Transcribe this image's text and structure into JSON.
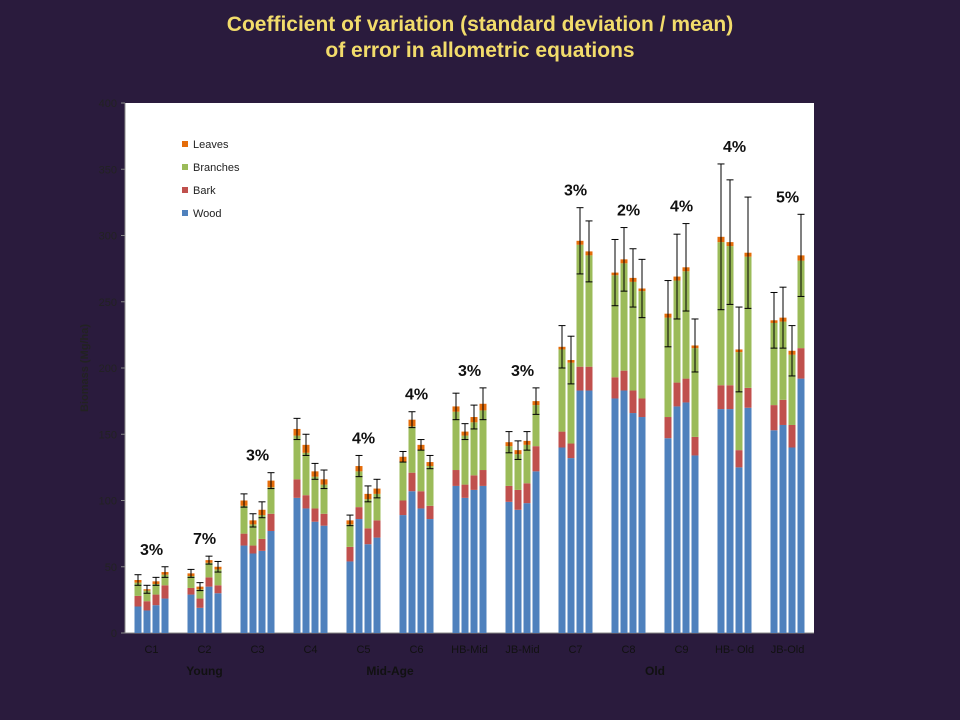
{
  "slide": {
    "title_line1": "Coefficient of variation (standard deviation / mean)",
    "title_line2": "of error in allometric equations"
  },
  "colors": {
    "background": "#2a1b3d",
    "title": "#f2dc6b",
    "plot_bg": "#ffffff",
    "wood": "#4f81bd",
    "bark": "#c0504d",
    "branches": "#9bbb59",
    "leaves": "#e46c0a"
  },
  "chart_data": {
    "type": "bar",
    "stacked": true,
    "title": "",
    "xlabel": "",
    "ylabel": "Biomass (Mg/ha)",
    "ylim": [
      0,
      400
    ],
    "yticks": [
      0,
      50,
      100,
      150,
      200,
      250,
      300,
      350,
      400
    ],
    "grid": false,
    "legend_position": "top-left",
    "series_order": [
      "Wood",
      "Bark",
      "Branches",
      "Leaves"
    ],
    "legend": [
      "Leaves",
      "Branches",
      "Bark",
      "Wood"
    ],
    "error_bars": true,
    "groups": [
      {
        "label": "C1",
        "cv": "3%",
        "bars": [
          {
            "wood": 20,
            "bark": 8,
            "branches": 10,
            "leaves": 2,
            "err": 4
          },
          {
            "wood": 17,
            "bark": 7,
            "branches": 8,
            "leaves": 1,
            "err": 3
          },
          {
            "wood": 21,
            "bark": 8,
            "branches": 8,
            "leaves": 2,
            "err": 3
          },
          {
            "wood": 26,
            "bark": 10,
            "branches": 8,
            "leaves": 2,
            "err": 4
          }
        ]
      },
      {
        "label": "C2",
        "cv": "7%",
        "bars": [
          {
            "wood": 29,
            "bark": 5,
            "branches": 9,
            "leaves": 2,
            "err": 3
          },
          {
            "wood": 19,
            "bark": 7,
            "branches": 7,
            "leaves": 2,
            "err": 3
          },
          {
            "wood": 35,
            "bark": 7,
            "branches": 11,
            "leaves": 2,
            "err": 3
          },
          {
            "wood": 30,
            "bark": 6,
            "branches": 12,
            "leaves": 2,
            "err": 4
          }
        ]
      },
      {
        "label": "C3",
        "cv": "3%",
        "bars": [
          {
            "wood": 66,
            "bark": 9,
            "branches": 21,
            "leaves": 4,
            "err": 5
          },
          {
            "wood": 60,
            "bark": 6,
            "branches": 16,
            "leaves": 3,
            "err": 5
          },
          {
            "wood": 62,
            "bark": 9,
            "branches": 18,
            "leaves": 4,
            "err": 6
          },
          {
            "wood": 77,
            "bark": 13,
            "branches": 20,
            "leaves": 5,
            "err": 6
          }
        ]
      },
      {
        "label": "C4",
        "cv": "",
        "bars": [
          {
            "wood": 102,
            "bark": 14,
            "branches": 33,
            "leaves": 5,
            "err": 8
          },
          {
            "wood": 94,
            "bark": 10,
            "branches": 32,
            "leaves": 6,
            "err": 8
          },
          {
            "wood": 84,
            "bark": 10,
            "branches": 24,
            "leaves": 4,
            "err": 6
          },
          {
            "wood": 81,
            "bark": 9,
            "branches": 22,
            "leaves": 4,
            "err": 7
          }
        ]
      },
      {
        "label": "C5",
        "cv": "4%",
        "bars": [
          {
            "wood": 54,
            "bark": 11,
            "branches": 17,
            "leaves": 3,
            "err": 4
          },
          {
            "wood": 86,
            "bark": 9,
            "branches": 27,
            "leaves": 4,
            "err": 8
          },
          {
            "wood": 67,
            "bark": 12,
            "branches": 22,
            "leaves": 4,
            "err": 6
          },
          {
            "wood": 72,
            "bark": 13,
            "branches": 20,
            "leaves": 4,
            "err": 7
          }
        ]
      },
      {
        "label": "C6",
        "cv": "4%",
        "bars": [
          {
            "wood": 89,
            "bark": 11,
            "branches": 29,
            "leaves": 4,
            "err": 4
          },
          {
            "wood": 107,
            "bark": 14,
            "branches": 35,
            "leaves": 5,
            "err": 6
          },
          {
            "wood": 94,
            "bark": 13,
            "branches": 31,
            "leaves": 4,
            "err": 4
          },
          {
            "wood": 86,
            "bark": 10,
            "branches": 30,
            "leaves": 3,
            "err": 5
          }
        ]
      },
      {
        "label": "HB-Mid",
        "cv": "3%",
        "bars": [
          {
            "wood": 111,
            "bark": 12,
            "branches": 44,
            "leaves": 4,
            "err": 10
          },
          {
            "wood": 102,
            "bark": 10,
            "branches": 37,
            "leaves": 3,
            "err": 6
          },
          {
            "wood": 108,
            "bark": 11,
            "branches": 40,
            "leaves": 4,
            "err": 9
          },
          {
            "wood": 111,
            "bark": 12,
            "branches": 45,
            "leaves": 5,
            "err": 12
          }
        ]
      },
      {
        "label": "JB-Mid",
        "cv": "3%",
        "bars": [
          {
            "wood": 99,
            "bark": 12,
            "branches": 30,
            "leaves": 3,
            "err": 8
          },
          {
            "wood": 93,
            "bark": 15,
            "branches": 27,
            "leaves": 3,
            "err": 7
          },
          {
            "wood": 98,
            "bark": 15,
            "branches": 29,
            "leaves": 3,
            "err": 7
          },
          {
            "wood": 122,
            "bark": 19,
            "branches": 31,
            "leaves": 3,
            "err": 10
          }
        ]
      },
      {
        "label": "C7",
        "cv": "3%",
        "bars": [
          {
            "wood": 140,
            "bark": 12,
            "branches": 62,
            "leaves": 2,
            "err": 16
          },
          {
            "wood": 132,
            "bark": 11,
            "branches": 61,
            "leaves": 2,
            "err": 18
          },
          {
            "wood": 183,
            "bark": 18,
            "branches": 92,
            "leaves": 3,
            "err": 25
          },
          {
            "wood": 183,
            "bark": 18,
            "branches": 84,
            "leaves": 3,
            "err": 23
          }
        ]
      },
      {
        "label": "C8",
        "cv": "2%",
        "bars": [
          {
            "wood": 177,
            "bark": 16,
            "branches": 77,
            "leaves": 2,
            "err": 25
          },
          {
            "wood": 183,
            "bark": 15,
            "branches": 81,
            "leaves": 3,
            "err": 24
          },
          {
            "wood": 166,
            "bark": 17,
            "branches": 82,
            "leaves": 3,
            "err": 22
          },
          {
            "wood": 163,
            "bark": 14,
            "branches": 81,
            "leaves": 2,
            "err": 22
          }
        ]
      },
      {
        "label": "C9",
        "cv": "4%",
        "bars": [
          {
            "wood": 147,
            "bark": 16,
            "branches": 75,
            "leaves": 3,
            "err": 25
          },
          {
            "wood": 171,
            "bark": 18,
            "branches": 77,
            "leaves": 3,
            "err": 32
          },
          {
            "wood": 174,
            "bark": 18,
            "branches": 81,
            "leaves": 3,
            "err": 33
          },
          {
            "wood": 134,
            "bark": 14,
            "branches": 67,
            "leaves": 2,
            "err": 20
          }
        ]
      },
      {
        "label": "HB- Old",
        "cv": "4%",
        "bars": [
          {
            "wood": 169,
            "bark": 18,
            "branches": 108,
            "leaves": 4,
            "err": 55
          },
          {
            "wood": 169,
            "bark": 18,
            "branches": 105,
            "leaves": 3,
            "err": 47
          },
          {
            "wood": 125,
            "bark": 13,
            "branches": 74,
            "leaves": 2,
            "err": 32
          },
          {
            "wood": 170,
            "bark": 15,
            "branches": 99,
            "leaves": 3,
            "err": 42
          }
        ]
      },
      {
        "label": "JB-Old",
        "cv": "5%",
        "bars": [
          {
            "wood": 153,
            "bark": 19,
            "branches": 62,
            "leaves": 2,
            "err": 21
          },
          {
            "wood": 157,
            "bark": 19,
            "branches": 59,
            "leaves": 3,
            "err": 23
          },
          {
            "wood": 140,
            "bark": 17,
            "branches": 53,
            "leaves": 3,
            "err": 19
          },
          {
            "wood": 192,
            "bark": 23,
            "branches": 66,
            "leaves": 4,
            "err": 31
          }
        ]
      }
    ],
    "categories": [
      {
        "label": "Young",
        "groups": [
          "C1",
          "C2",
          "C3"
        ]
      },
      {
        "label": "Mid-Age",
        "groups": [
          "C4",
          "C5",
          "C6",
          "HB-Mid"
        ]
      },
      {
        "label": "Old",
        "groups": [
          "JB-Mid",
          "C7",
          "C8",
          "C9",
          "HB- Old",
          "JB-Old"
        ]
      }
    ]
  }
}
